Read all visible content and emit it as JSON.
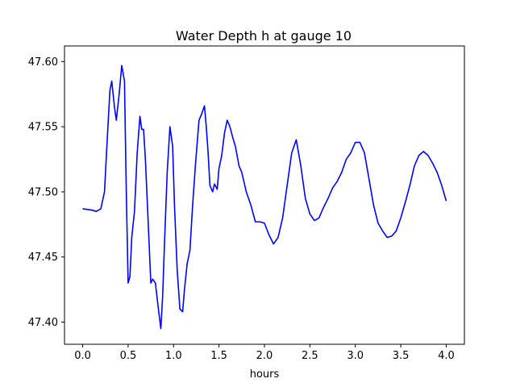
{
  "chart_data": {
    "type": "line",
    "title": "Water Depth h at gauge 10",
    "xlabel": "hours",
    "ylabel": "",
    "xlim": [
      -0.2,
      4.2
    ],
    "ylim": [
      47.383,
      47.612
    ],
    "xticks": [
      0.0,
      0.5,
      1.0,
      1.5,
      2.0,
      2.5,
      3.0,
      3.5,
      4.0
    ],
    "xtick_labels": [
      "0.0",
      "0.5",
      "1.0",
      "1.5",
      "2.0",
      "2.5",
      "3.0",
      "3.5",
      "4.0"
    ],
    "yticks": [
      47.4,
      47.45,
      47.5,
      47.55,
      47.6
    ],
    "ytick_labels": [
      "47.40",
      "47.45",
      "47.50",
      "47.55",
      "47.60"
    ],
    "grid": false,
    "series": [
      {
        "color": "#0000ff",
        "x": [
          0.0,
          0.1,
          0.15,
          0.2,
          0.24,
          0.27,
          0.3,
          0.32,
          0.35,
          0.37,
          0.4,
          0.43,
          0.46,
          0.48,
          0.5,
          0.52,
          0.54,
          0.57,
          0.6,
          0.63,
          0.65,
          0.67,
          0.69,
          0.72,
          0.75,
          0.77,
          0.8,
          0.83,
          0.86,
          0.88,
          0.9,
          0.93,
          0.96,
          0.99,
          1.01,
          1.04,
          1.07,
          1.1,
          1.12,
          1.15,
          1.18,
          1.21,
          1.24,
          1.28,
          1.31,
          1.34,
          1.36,
          1.38,
          1.4,
          1.43,
          1.45,
          1.48,
          1.5,
          1.53,
          1.56,
          1.59,
          1.62,
          1.65,
          1.68,
          1.72,
          1.75,
          1.8,
          1.85,
          1.9,
          1.95,
          2.0,
          2.05,
          2.1,
          2.15,
          2.2,
          2.25,
          2.3,
          2.35,
          2.4,
          2.45,
          2.5,
          2.55,
          2.6,
          2.65,
          2.7,
          2.75,
          2.8,
          2.85,
          2.9,
          2.95,
          3.0,
          3.05,
          3.1,
          3.15,
          3.2,
          3.25,
          3.3,
          3.35,
          3.4,
          3.45,
          3.5,
          3.55,
          3.6,
          3.65,
          3.7,
          3.75,
          3.8,
          3.85,
          3.9,
          3.95,
          4.0
        ],
        "y": [
          47.487,
          47.486,
          47.485,
          47.487,
          47.5,
          47.54,
          47.578,
          47.585,
          47.565,
          47.555,
          47.574,
          47.597,
          47.585,
          47.5,
          47.43,
          47.435,
          47.465,
          47.485,
          47.53,
          47.558,
          47.548,
          47.548,
          47.525,
          47.478,
          47.43,
          47.433,
          47.43,
          47.412,
          47.395,
          47.42,
          47.46,
          47.515,
          47.55,
          47.535,
          47.49,
          47.44,
          47.41,
          47.408,
          47.425,
          47.445,
          47.455,
          47.49,
          47.52,
          47.555,
          47.56,
          47.566,
          47.55,
          47.53,
          47.505,
          47.5,
          47.506,
          47.502,
          47.518,
          47.528,
          47.545,
          47.555,
          47.55,
          47.542,
          47.535,
          47.52,
          47.515,
          47.5,
          47.49,
          47.477,
          47.477,
          47.476,
          47.467,
          47.46,
          47.465,
          47.48,
          47.505,
          47.53,
          47.54,
          47.52,
          47.495,
          47.483,
          47.478,
          47.48,
          47.488,
          47.495,
          47.503,
          47.508,
          47.515,
          47.525,
          47.53,
          47.538,
          47.538,
          47.53,
          47.51,
          47.49,
          47.476,
          47.47,
          47.465,
          47.466,
          47.47,
          47.48,
          47.492,
          47.505,
          47.52,
          47.528,
          47.531,
          47.528,
          47.522,
          47.515,
          47.505,
          47.493
        ]
      }
    ]
  }
}
